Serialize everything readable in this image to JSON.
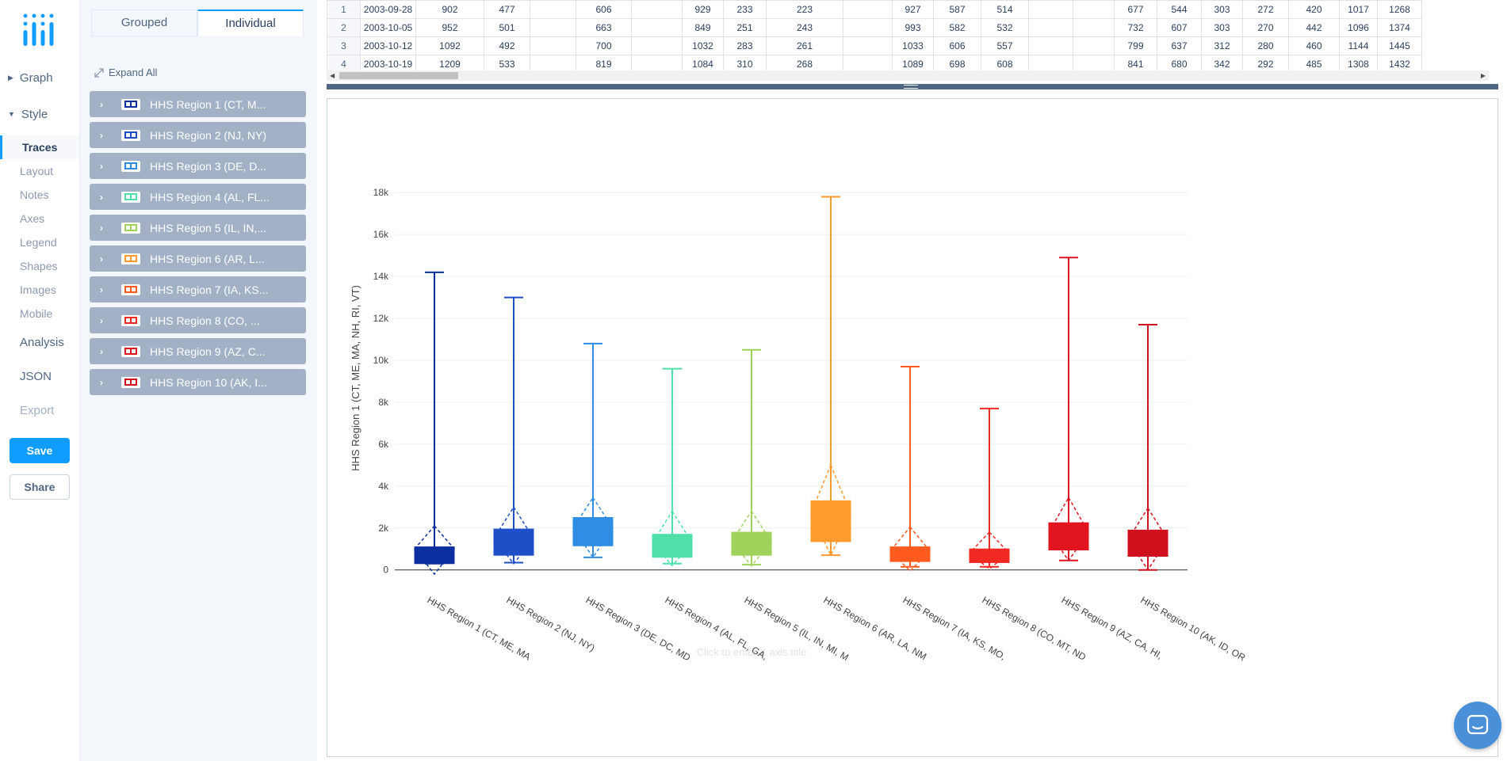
{
  "nav": {
    "graph": "Graph",
    "style": "Style",
    "style_items": [
      "Traces",
      "Layout",
      "Notes",
      "Axes",
      "Legend",
      "Shapes",
      "Images",
      "Mobile"
    ],
    "analysis": "Analysis",
    "json": "JSON",
    "export": "Export",
    "save": "Save",
    "share": "Share"
  },
  "panel": {
    "tabs": [
      "Grouped",
      "Individual"
    ],
    "expand_all": "Expand All",
    "traces": [
      {
        "label": "HHS Region 1 (CT, M...",
        "color": "#0d2fa0"
      },
      {
        "label": "HHS Region 2 (NJ, NY)",
        "color": "#1f4fc7"
      },
      {
        "label": "HHS Region 3 (DE, D...",
        "color": "#2f8de4"
      },
      {
        "label": "HHS Region 4 (AL, FL...",
        "color": "#4fe0a9"
      },
      {
        "label": "HHS Region 5 (IL, IN,...",
        "color": "#9fd25a"
      },
      {
        "label": "HHS Region 6 (AR, L...",
        "color": "#ff9a2e"
      },
      {
        "label": "HHS Region 7 (IA, KS...",
        "color": "#ff5a1f"
      },
      {
        "label": "HHS Region 8 (CO, ...",
        "color": "#f02a22"
      },
      {
        "label": "HHS Region 9 (AZ, C...",
        "color": "#e0151f"
      },
      {
        "label": "HHS Region 10 (AK, I...",
        "color": "#d0101c"
      }
    ]
  },
  "grid": {
    "rows": [
      {
        "n": "1",
        "date": "2003-09-28",
        "cells": [
          "902",
          "477",
          "",
          "606",
          "",
          "929",
          "233",
          "223",
          "",
          "927",
          "587",
          "514",
          "",
          "",
          "677",
          "544",
          "303",
          "272",
          "420",
          "1017",
          "1268"
        ]
      },
      {
        "n": "2",
        "date": "2003-10-05",
        "cells": [
          "952",
          "501",
          "",
          "663",
          "",
          "849",
          "251",
          "243",
          "",
          "993",
          "582",
          "532",
          "",
          "",
          "732",
          "607",
          "303",
          "270",
          "442",
          "1096",
          "1374"
        ]
      },
      {
        "n": "3",
        "date": "2003-10-12",
        "cells": [
          "1092",
          "492",
          "",
          "700",
          "",
          "1032",
          "283",
          "261",
          "",
          "1033",
          "606",
          "557",
          "",
          "",
          "799",
          "637",
          "312",
          "280",
          "460",
          "1144",
          "1445"
        ]
      },
      {
        "n": "4",
        "date": "2003-10-19",
        "cells": [
          "1209",
          "533",
          "",
          "819",
          "",
          "1084",
          "310",
          "268",
          "",
          "1089",
          "698",
          "608",
          "",
          "",
          "841",
          "680",
          "342",
          "292",
          "485",
          "1308",
          "1432"
        ]
      }
    ]
  },
  "chart_data": {
    "type": "box",
    "title": "",
    "ylabel": "HHS Region 1 (CT, ME, MA, NH, RI, VT)",
    "xlabel_placeholder": "Click to enter X axis title",
    "ylim": [
      -200,
      18500
    ],
    "yticks": [
      0,
      2000,
      4000,
      6000,
      8000,
      10000,
      12000,
      14000,
      16000,
      18000
    ],
    "ytick_labels": [
      "0",
      "2k",
      "4k",
      "6k",
      "8k",
      "10k",
      "12k",
      "14k",
      "16k",
      "18k"
    ],
    "categories": [
      "HHS Region 1 (CT, ME, MA",
      "HHS Region 2 (NJ, NY)",
      "HHS Region 3 (DE, DC, MD",
      "HHS Region 4 (AL, FL, GA,",
      "HHS Region 5 (IL, IN, MI, M",
      "HHS Region 6 (AR, LA, NM",
      "HHS Region 7 (IA, KS, MO,",
      "HHS Region 8 (CO, MT, ND",
      "HHS Region 9 (AZ, CA, HI,",
      "HHS Region 10 (AK, ID, OR"
    ],
    "series": [
      {
        "name": "HHS Region 1 (CT, M...",
        "color": "#0d2fa0",
        "min": 300,
        "q1": 300,
        "median": 700,
        "q3": 1100,
        "max": 14200,
        "mean": 1000,
        "sd_low": -200,
        "sd_high": 2100
      },
      {
        "name": "HHS Region 2 (NJ, NY)",
        "color": "#1f4fc7",
        "min": 350,
        "q1": 700,
        "median": 1300,
        "q3": 1950,
        "max": 13000,
        "mean": 1500,
        "sd_low": 300,
        "sd_high": 3000
      },
      {
        "name": "HHS Region 3 (DE, D...",
        "color": "#2f8de4",
        "min": 600,
        "q1": 1150,
        "median": 1800,
        "q3": 2500,
        "max": 10800,
        "mean": 2000,
        "sd_low": 600,
        "sd_high": 3450
      },
      {
        "name": "HHS Region 4 (AL, FL...",
        "color": "#4fe0a9",
        "min": 300,
        "q1": 600,
        "median": 1100,
        "q3": 1700,
        "max": 9600,
        "mean": 1300,
        "sd_low": 200,
        "sd_high": 2800
      },
      {
        "name": "HHS Region 5 (IL, IN,...",
        "color": "#9fd25a",
        "min": 250,
        "q1": 700,
        "median": 1200,
        "q3": 1800,
        "max": 10500,
        "mean": 1350,
        "sd_low": 200,
        "sd_high": 2800
      },
      {
        "name": "HHS Region 6 (AR, L...",
        "color": "#ff9a2e",
        "min": 700,
        "q1": 1350,
        "median": 2200,
        "q3": 3300,
        "max": 17800,
        "mean": 2700,
        "sd_low": 700,
        "sd_high": 5000
      },
      {
        "name": "HHS Region 7 (IA, KS...",
        "color": "#ff5a1f",
        "min": 150,
        "q1": 400,
        "median": 750,
        "q3": 1100,
        "max": 9700,
        "mean": 900,
        "sd_low": -50,
        "sd_high": 2050
      },
      {
        "name": "HHS Region 8 (CO, ...",
        "color": "#f02a22",
        "min": 150,
        "q1": 350,
        "median": 650,
        "q3": 1000,
        "max": 7700,
        "mean": 800,
        "sd_low": 50,
        "sd_high": 1800
      },
      {
        "name": "HHS Region 9 (AZ, C...",
        "color": "#e0151f",
        "min": 450,
        "q1": 950,
        "median": 1500,
        "q3": 2250,
        "max": 14900,
        "mean": 1800,
        "sd_low": 450,
        "sd_high": 3450
      },
      {
        "name": "HHS Region 10 (AK, I...",
        "color": "#d0101c",
        "min": 0,
        "q1": 650,
        "median": 1200,
        "q3": 1900,
        "max": 11700,
        "mean": 1450,
        "sd_low": 0,
        "sd_high": 2950
      }
    ]
  }
}
